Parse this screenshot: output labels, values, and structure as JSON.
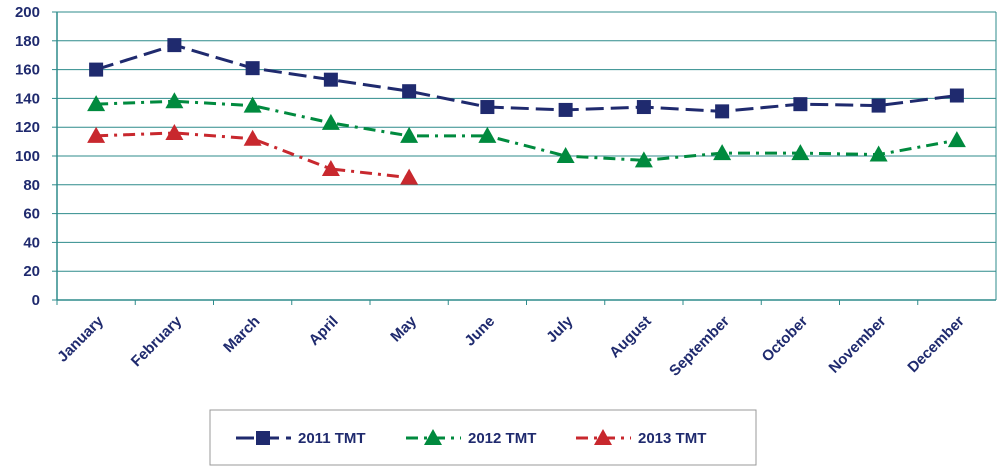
{
  "chart_data": {
    "type": "line",
    "categories": [
      "January",
      "February",
      "March",
      "April",
      "May",
      "June",
      "July",
      "August",
      "September",
      "October",
      "November",
      "December"
    ],
    "series": [
      {
        "name": "2011 TMT",
        "color": "#1f2a6e",
        "marker": "square",
        "dash": "dashed",
        "values": [
          160,
          177,
          161,
          153,
          145,
          134,
          132,
          134,
          131,
          136,
          135,
          142
        ]
      },
      {
        "name": "2012 TMT",
        "color": "#008a3e",
        "marker": "triangle",
        "dash": "dashdot",
        "values": [
          136,
          138,
          135,
          123,
          114,
          114,
          100,
          97,
          102,
          102,
          101,
          111
        ]
      },
      {
        "name": "2013 TMT",
        "color": "#c8282e",
        "marker": "triangle",
        "dash": "dashdot",
        "values": [
          114,
          116,
          112,
          91,
          85,
          null,
          null,
          null,
          null,
          null,
          null,
          null
        ]
      }
    ],
    "ylim": [
      0,
      200
    ],
    "yticks": [
      0,
      20,
      40,
      60,
      80,
      100,
      120,
      140,
      160,
      180,
      200
    ],
    "grid": true,
    "legend": "bottom"
  }
}
